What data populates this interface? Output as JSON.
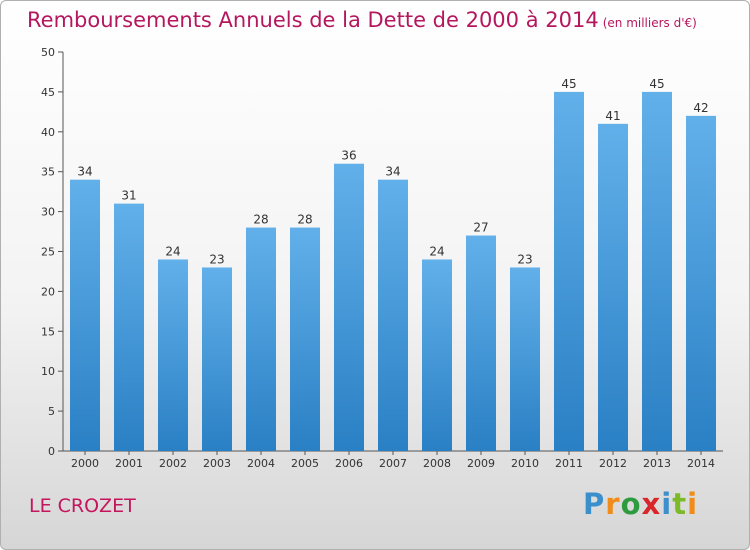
{
  "title": "Remboursements Annuels de la Dette de 2000 à 2014",
  "unit": "(en milliers d'€)",
  "commune": "LE CROZET",
  "brand": {
    "name": "Proxiti",
    "letters": [
      "P",
      "r",
      "o",
      "x",
      "i",
      "t",
      "i"
    ],
    "colors": [
      "#3b8fcc",
      "#ef8c1a",
      "#2e9b3e",
      "#d8262b",
      "#3b8fcc",
      "#7cba2a",
      "#ef8c1a"
    ]
  },
  "colors": {
    "bar_top": "#62b0ea",
    "bar_bottom": "#2a80c4",
    "title": "#b5175f"
  },
  "chart_data": {
    "type": "bar",
    "title": "Remboursements Annuels de la Dette de 2000 à 2014",
    "ylabel": "en milliers d'€",
    "xlabel": "",
    "categories": [
      "2000",
      "2001",
      "2002",
      "2003",
      "2004",
      "2005",
      "2006",
      "2007",
      "2008",
      "2009",
      "2010",
      "2011",
      "2012",
      "2013",
      "2014"
    ],
    "values": [
      34,
      31,
      24,
      23,
      28,
      28,
      36,
      34,
      24,
      27,
      23,
      45,
      41,
      45,
      42
    ],
    "ylim": [
      0,
      50
    ],
    "yticks": [
      0,
      5,
      10,
      15,
      20,
      25,
      30,
      35,
      40,
      45,
      50
    ],
    "grid": false
  }
}
